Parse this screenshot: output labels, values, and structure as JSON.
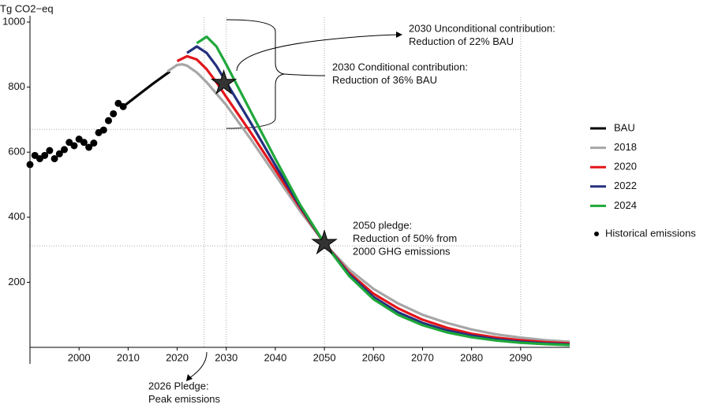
{
  "chart_data": {
    "type": "line",
    "y_label": "Tg CO2−eq",
    "xlim": [
      1990,
      2100
    ],
    "ylim": [
      0,
      1000
    ],
    "xticks": [
      2000,
      2010,
      2020,
      2030,
      2040,
      2050,
      2060,
      2070,
      2080,
      2090
    ],
    "yticks": [
      200,
      400,
      600,
      800,
      1000
    ],
    "series": [
      {
        "name": "BAU",
        "color": "#000000",
        "x": [
          2009,
          2012,
          2015,
          2018.5
        ],
        "values": [
          740,
          775,
          810,
          848
        ]
      },
      {
        "name": "2018",
        "color": "#a6a6a6",
        "x": [
          2018,
          2020,
          2021,
          2022,
          2024,
          2026,
          2028,
          2030,
          2035,
          2040,
          2045,
          2050,
          2055,
          2060,
          2065,
          2070,
          2075,
          2080,
          2085,
          2090,
          2095,
          2100
        ],
        "values": [
          848,
          868,
          870,
          866,
          845,
          815,
          780,
          745,
          640,
          530,
          420,
          320,
          240,
          180,
          135,
          100,
          75,
          55,
          40,
          30,
          22,
          17
        ]
      },
      {
        "name": "2020",
        "color": "#e3151a",
        "x": [
          2020,
          2022,
          2024,
          2026,
          2028,
          2030,
          2035,
          2040,
          2045,
          2050,
          2055,
          2060,
          2065,
          2070,
          2075,
          2080,
          2085,
          2090,
          2095,
          2100
        ],
        "values": [
          880,
          895,
          885,
          855,
          815,
          770,
          660,
          545,
          430,
          320,
          230,
          165,
          120,
          85,
          60,
          42,
          30,
          22,
          16,
          12
        ]
      },
      {
        "name": "2022",
        "color": "#24307e",
        "x": [
          2022,
          2024,
          2026,
          2028,
          2030,
          2035,
          2040,
          2045,
          2050,
          2055,
          2060,
          2065,
          2070,
          2075,
          2080,
          2085,
          2090,
          2095,
          2100
        ],
        "values": [
          905,
          925,
          905,
          865,
          815,
          690,
          560,
          435,
          320,
          225,
          155,
          108,
          75,
          52,
          36,
          25,
          17,
          12,
          9
        ]
      },
      {
        "name": "2024",
        "color": "#1fa83a",
        "x": [
          2024,
          2026,
          2028,
          2030,
          2035,
          2040,
          2045,
          2050,
          2055,
          2060,
          2065,
          2070,
          2075,
          2080,
          2085,
          2090,
          2095,
          2100
        ],
        "values": [
          935,
          955,
          925,
          870,
          725,
          580,
          440,
          320,
          220,
          148,
          100,
          68,
          46,
          31,
          21,
          14,
          10,
          7
        ]
      }
    ],
    "points": {
      "name": "Historical emissions",
      "color": "#000000",
      "x": [
        1990,
        1991,
        1992,
        1993,
        1994,
        1995,
        1996,
        1997,
        1998,
        1999,
        2000,
        2001,
        2002,
        2003,
        2004,
        2005,
        2006,
        2007,
        2008,
        2009
      ],
      "values": [
        562,
        590,
        580,
        590,
        605,
        580,
        595,
        608,
        630,
        620,
        640,
        630,
        615,
        628,
        660,
        668,
        697,
        718,
        750,
        740
      ]
    },
    "stars": {
      "x": [
        2029.5,
        2050
      ],
      "values": [
        812,
        320
      ]
    },
    "ref_x": [
      2025.5,
      2030,
      2050,
      2090
    ],
    "ref_y": [
      670,
      312
    ],
    "annotations": [
      {
        "lines": [
          "2030 Unconditional contribution:",
          "Reduction of 22% BAU"
        ]
      },
      {
        "lines": [
          "2030 Conditional contribution:",
          "Reduction of 36% BAU"
        ]
      },
      {
        "lines": [
          "2050 pledge:",
          "Reduction of 50% from",
          "2000 GHG emissions"
        ]
      },
      {
        "lines": [
          "2026 Pledge:",
          "Peak emissions"
        ]
      }
    ]
  }
}
